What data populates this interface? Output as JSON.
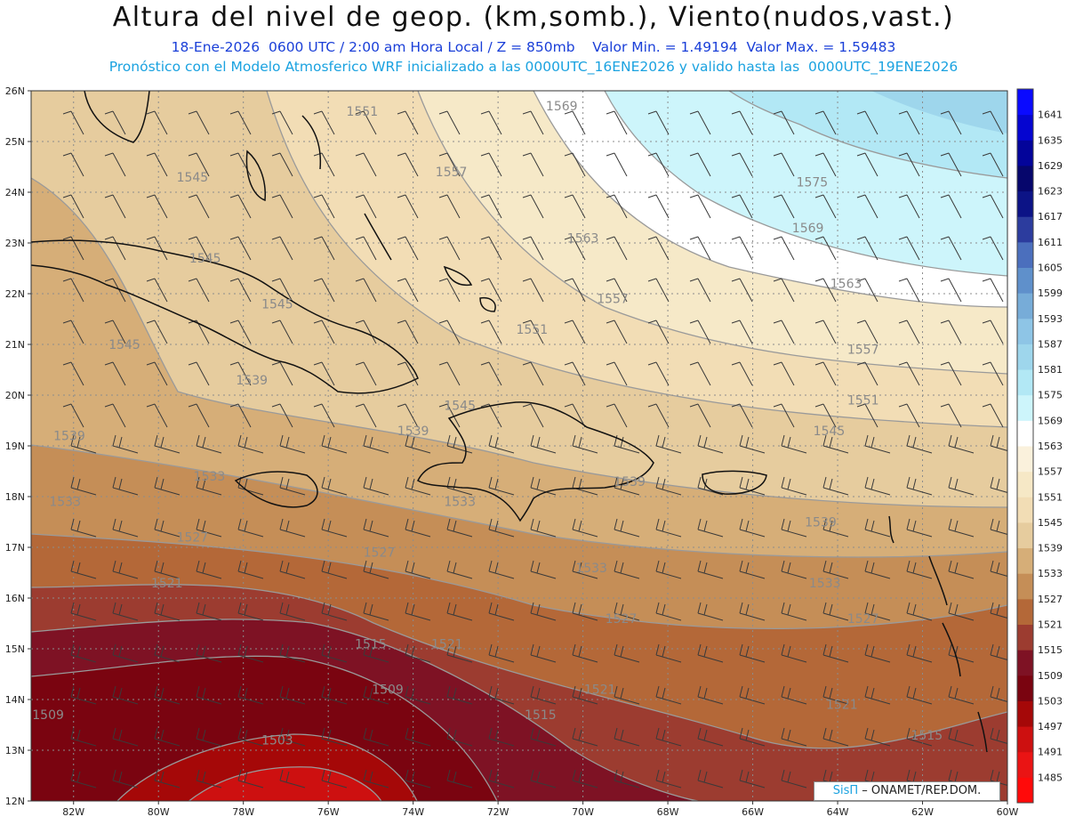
{
  "header": {
    "title": "Altura del nivel de geop. (km,somb.), Viento(nudos,vast.)",
    "subtitle_1": "18-Ene-2026  0600 UTC / 2:00 am Hora Local / Z = 850mb    Valor Min. = 1.49194  Valor Max. = 1.59483",
    "subtitle_2": "Pronóstico con el Modelo Atmosferico WRF inicializado a las 0000UTC_16ENE2026 y valido hasta las  0000UTC_19ENE2026"
  },
  "map": {
    "lon_range": [
      -83,
      -60
    ],
    "lat_range": [
      12,
      26
    ],
    "lat_ticks": [
      12,
      13,
      14,
      15,
      16,
      17,
      18,
      19,
      20,
      21,
      22,
      23,
      24,
      25,
      26
    ],
    "lat_tick_labels": [
      "12N",
      "13N",
      "14N",
      "15N",
      "16N",
      "17N",
      "18N",
      "19N",
      "20N",
      "21N",
      "22N",
      "23N",
      "24N",
      "25N",
      "26N"
    ],
    "lon_ticks": [
      -82,
      -80,
      -78,
      -76,
      -74,
      -72,
      -70,
      -68,
      -66,
      -64,
      -62,
      -60
    ],
    "lon_tick_labels": [
      "82W",
      "80W",
      "78W",
      "76W",
      "74W",
      "72W",
      "70W",
      "68W",
      "66W",
      "64W",
      "62W",
      "60W"
    ],
    "contour_labels": [
      {
        "text": "1569",
        "lon": -70.5,
        "lat": 25.7
      },
      {
        "text": "1551",
        "lon": -75.2,
        "lat": 25.6
      },
      {
        "text": "1557",
        "lon": -73.1,
        "lat": 24.4
      },
      {
        "text": "1545",
        "lon": -79.2,
        "lat": 24.3
      },
      {
        "text": "1575",
        "lon": -64.6,
        "lat": 24.2
      },
      {
        "text": "1563",
        "lon": -70.0,
        "lat": 23.1
      },
      {
        "text": "1569",
        "lon": -64.7,
        "lat": 23.3
      },
      {
        "text": "1545",
        "lon": -78.9,
        "lat": 22.7
      },
      {
        "text": "1563",
        "lon": -63.8,
        "lat": 22.2
      },
      {
        "text": "1557",
        "lon": -69.3,
        "lat": 21.9
      },
      {
        "text": "1545",
        "lon": -77.2,
        "lat": 21.8
      },
      {
        "text": "1551",
        "lon": -71.2,
        "lat": 21.3
      },
      {
        "text": "1545",
        "lon": -80.8,
        "lat": 21.0
      },
      {
        "text": "1557",
        "lon": -63.4,
        "lat": 20.9
      },
      {
        "text": "1539",
        "lon": -77.8,
        "lat": 20.3
      },
      {
        "text": "1551",
        "lon": -63.4,
        "lat": 19.9
      },
      {
        "text": "1545",
        "lon": -72.9,
        "lat": 19.8
      },
      {
        "text": "1539",
        "lon": -74.0,
        "lat": 19.3
      },
      {
        "text": "1539",
        "lon": -82.1,
        "lat": 19.2
      },
      {
        "text": "1545",
        "lon": -64.2,
        "lat": 19.3
      },
      {
        "text": "1539",
        "lon": -68.9,
        "lat": 18.3
      },
      {
        "text": "1533",
        "lon": -78.8,
        "lat": 18.4
      },
      {
        "text": "1533",
        "lon": -82.2,
        "lat": 17.9
      },
      {
        "text": "1533",
        "lon": -72.9,
        "lat": 17.9
      },
      {
        "text": "1539",
        "lon": -64.4,
        "lat": 17.5
      },
      {
        "text": "1527",
        "lon": -79.2,
        "lat": 17.2
      },
      {
        "text": "1527",
        "lon": -74.8,
        "lat": 16.9
      },
      {
        "text": "1533",
        "lon": -69.8,
        "lat": 16.6
      },
      {
        "text": "1521",
        "lon": -79.8,
        "lat": 16.3
      },
      {
        "text": "1533",
        "lon": -64.3,
        "lat": 16.3
      },
      {
        "text": "1527",
        "lon": -69.1,
        "lat": 15.6
      },
      {
        "text": "1527",
        "lon": -63.4,
        "lat": 15.6
      },
      {
        "text": "1515",
        "lon": -75.0,
        "lat": 15.1
      },
      {
        "text": "1521",
        "lon": -73.2,
        "lat": 15.1
      },
      {
        "text": "1509",
        "lon": -74.6,
        "lat": 14.2
      },
      {
        "text": "1521",
        "lon": -69.6,
        "lat": 14.2
      },
      {
        "text": "1521",
        "lon": -63.9,
        "lat": 13.9
      },
      {
        "text": "1509",
        "lon": -82.6,
        "lat": 13.7
      },
      {
        "text": "1515",
        "lon": -71.0,
        "lat": 13.7
      },
      {
        "text": "1503",
        "lon": -77.2,
        "lat": 13.2
      },
      {
        "text": "1515",
        "lon": -61.9,
        "lat": 13.3
      }
    ]
  },
  "colorbar": {
    "colors": [
      "#ff0a0a",
      "#ea1414",
      "#cd1010",
      "#a50808",
      "#7a0410",
      "#7e1224",
      "#9c3c30",
      "#b46838",
      "#c58e57",
      "#d6ae78",
      "#e6cc9e",
      "#f2ddb5",
      "#f6e8c6",
      "#faf1dc",
      "#ffffff",
      "#cdf5fb",
      "#b2e8f5",
      "#9ed6ec",
      "#8ec5e6",
      "#77acd8",
      "#5f90cb",
      "#4b6fbd",
      "#2c3c9e",
      "#0c1386",
      "#06066c",
      "#03049a",
      "#0505d0",
      "#0a0aff"
    ],
    "tick_labels": [
      "1485",
      "1491",
      "1497",
      "1503",
      "1509",
      "1515",
      "1521",
      "1527",
      "1533",
      "1539",
      "1545",
      "1551",
      "1557",
      "1563",
      "1569",
      "1575",
      "1581",
      "1587",
      "1593",
      "1599",
      "1605",
      "1611",
      "1617",
      "1623",
      "1629",
      "1635",
      "1641"
    ]
  },
  "credit": {
    "brand": "SisΠ",
    "org": "– ONAMET/REP.DOM."
  }
}
